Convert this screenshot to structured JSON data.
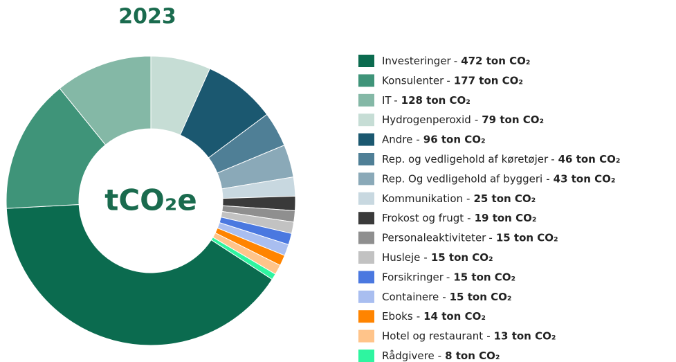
{
  "chart_data": {
    "type": "donut",
    "title": "2023",
    "center_label": "tCO₂e",
    "separator": "-",
    "categories": [
      "Investeringer",
      "Konsulenter",
      "IT",
      "Hydrogenperoxid",
      "Andre",
      "Rep. og vedligehold af køretøjer",
      "Rep. Og vedligehold af byggeri",
      "Kommunikation",
      "Frokost og frugt",
      "Personaleaktiviteter",
      "Husleje",
      "Forsikringer",
      "Containere",
      "Eboks",
      "Hotel og restaurant",
      "Rådgivere"
    ],
    "values": [
      472,
      177,
      128,
      79,
      96,
      46,
      43,
      25,
      19,
      15,
      15,
      15,
      15,
      14,
      13,
      8
    ],
    "value_labels": [
      "472 ton CO₂",
      "177 ton CO₂",
      "128 ton CO₂",
      "79 ton CO₂",
      "96 ton CO₂",
      "46 ton CO₂",
      "43 ton CO₂",
      "25 ton CO₂",
      "19 ton CO₂",
      "15 ton CO₂",
      "15 ton CO₂",
      "15 ton CO₂",
      "15 ton CO₂",
      "14 ton CO₂",
      "13 ton CO₂",
      "8 ton CO₂"
    ],
    "colors": [
      "#0b6b4f",
      "#3f9479",
      "#84b8a6",
      "#c6ddd5",
      "#1b5870",
      "#4f7f96",
      "#8aa9b8",
      "#c8d8e0",
      "#3a3a3a",
      "#8f8f8f",
      "#c2c2c2",
      "#4a78e0",
      "#a9bef0",
      "#ff8400",
      "#ffc48a",
      "#2ef5a0"
    ]
  }
}
